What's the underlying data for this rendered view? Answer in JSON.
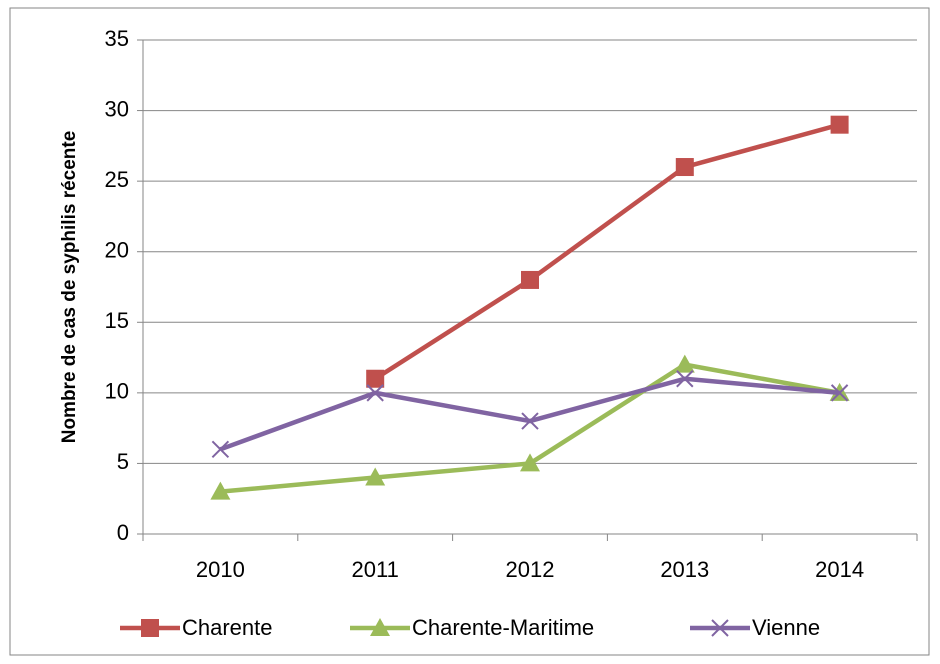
{
  "chart_data": {
    "type": "line",
    "y_label": "Nombre de cas de syphilis récente",
    "categories": [
      "2010",
      "2011",
      "2012",
      "2013",
      "2014"
    ],
    "series": [
      {
        "name": "Charente",
        "color": "#c0504d",
        "marker": "square",
        "values": [
          null,
          11,
          18,
          26,
          29
        ]
      },
      {
        "name": "Charente-Maritime",
        "color": "#9bbb59",
        "marker": "triangle",
        "values": [
          3,
          4,
          5,
          12,
          10
        ]
      },
      {
        "name": "Vienne",
        "color": "#8064a2",
        "marker": "x",
        "values": [
          6,
          10,
          8,
          11,
          10
        ]
      }
    ],
    "ylim": [
      0,
      35
    ],
    "yticks": [
      0,
      5,
      10,
      15,
      20,
      25,
      30,
      35
    ],
    "grid": true,
    "legend": "bottom"
  }
}
